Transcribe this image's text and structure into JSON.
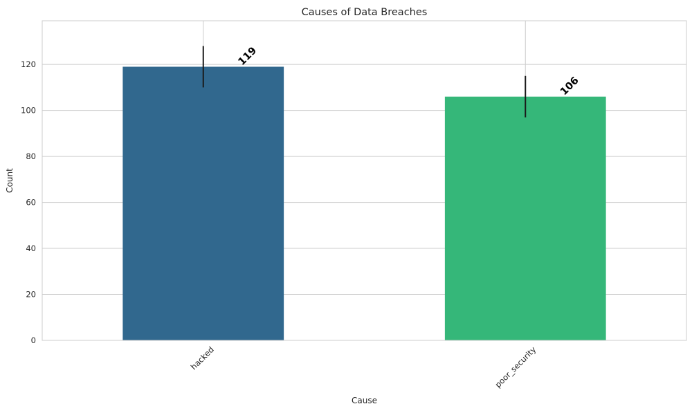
{
  "chart_data": {
    "type": "bar",
    "title": "Causes of Data Breaches",
    "xlabel": "Cause",
    "ylabel": "Count",
    "categories": [
      "hacked",
      "poor_security"
    ],
    "values": [
      119,
      106
    ],
    "value_labels": [
      "119",
      "106"
    ],
    "error_bars": [
      {
        "low": 110,
        "high": 128
      },
      {
        "low": 97,
        "high": 115
      }
    ],
    "colors": [
      "#31688e",
      "#35b779"
    ],
    "ylim": [
      0,
      139
    ],
    "yticks": [
      0,
      20,
      40,
      60,
      80,
      100,
      120
    ],
    "ytick_labels": [
      "0",
      "20",
      "40",
      "60",
      "80",
      "100",
      "120"
    ],
    "grid": true,
    "legend": "none"
  }
}
